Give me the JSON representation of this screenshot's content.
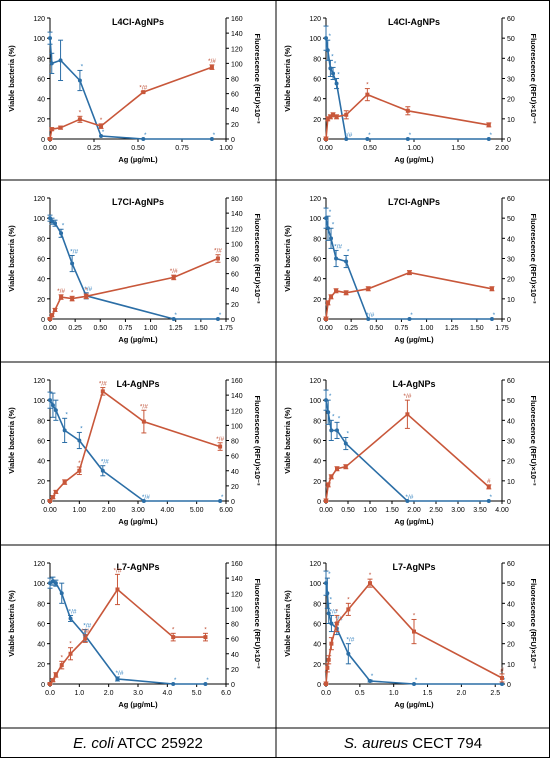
{
  "colors": {
    "viable": "#2b6ea6",
    "fluor": "#c8573a",
    "viable_mark": "#3a86c2",
    "fluor_mark": "#c0533a",
    "grid": "#000000"
  },
  "footer": {
    "left": {
      "italic": "E. coli",
      "rest": " ATCC 25922"
    },
    "right": {
      "italic": "S. aureus",
      "rest": " CECT 794"
    }
  },
  "chart_data": [
    {
      "type": "line",
      "title": "L4Cl-AgNPs",
      "xlabel": "Ag (µg/mL)",
      "ylabel": "Viable bacteria (%)",
      "y2label": "Fluorescence (RFU)×10⁻³",
      "xlim": [
        0,
        1.0
      ],
      "xticks": [
        "0.00",
        "0.25",
        "0.50",
        "0.75",
        "1.00"
      ],
      "ylim": [
        0,
        120
      ],
      "yticks": [
        0,
        20,
        40,
        60,
        80,
        100,
        120
      ],
      "y2lim": [
        0,
        160
      ],
      "y2ticks": [
        0,
        20,
        40,
        60,
        80,
        100,
        120,
        140,
        160
      ],
      "series": [
        {
          "axis": "left",
          "x": [
            0,
            0.01,
            0.06,
            0.17,
            0.29,
            0.53,
            0.92
          ],
          "values": [
            100,
            75,
            78,
            58,
            3,
            0,
            0
          ],
          "err": [
            6,
            10,
            20,
            10,
            0,
            0,
            0
          ],
          "marks": [
            "",
            "",
            "",
            "*",
            "*",
            "*",
            "*"
          ]
        },
        {
          "axis": "right",
          "x": [
            0,
            0.01,
            0.06,
            0.17,
            0.29,
            0.53,
            0.92
          ],
          "values": [
            0,
            13,
            15,
            26,
            17,
            62,
            95
          ],
          "err": [
            2,
            2,
            2,
            4,
            3,
            1,
            3
          ],
          "marks": [
            "",
            "",
            "",
            "*",
            "*",
            "*/#",
            "*/#"
          ]
        }
      ]
    },
    {
      "type": "line",
      "title": "L4Cl-AgNPs",
      "xlabel": "Ag (µg/mL)",
      "ylabel": "Viable bacteria (%)",
      "y2label": "Fluorescence (RFU)×10⁻³",
      "xlim": [
        0,
        2.0
      ],
      "xticks": [
        "0.00",
        "0.50",
        "1.00",
        "1.50",
        "2.00"
      ],
      "ylim": [
        0,
        120
      ],
      "yticks": [
        0,
        20,
        40,
        60,
        80,
        100,
        120
      ],
      "y2lim": [
        0,
        60
      ],
      "y2ticks": [
        0,
        10,
        20,
        30,
        40,
        50,
        60
      ],
      "series": [
        {
          "axis": "left",
          "x": [
            0,
            0.02,
            0.05,
            0.08,
            0.12,
            0.23,
            0.47,
            0.93,
            1.85
          ],
          "values": [
            100,
            88,
            70,
            65,
            55,
            0,
            0,
            0,
            0
          ],
          "err": [
            12,
            10,
            8,
            6,
            5,
            0,
            0,
            0,
            0
          ],
          "marks": [
            "",
            "*",
            "*",
            "*",
            "*",
            "*/#",
            "*",
            "*",
            "*"
          ]
        },
        {
          "axis": "right",
          "x": [
            0,
            0.02,
            0.05,
            0.08,
            0.12,
            0.23,
            0.47,
            0.93,
            1.85
          ],
          "values": [
            0,
            10,
            11,
            12,
            11,
            12,
            22,
            14,
            7
          ],
          "err": [
            1,
            1,
            1,
            1,
            1,
            2,
            3,
            2,
            1
          ],
          "marks": [
            "",
            "",
            "",
            "",
            "",
            "",
            "*",
            "",
            ""
          ]
        }
      ]
    },
    {
      "type": "line",
      "title": "L7Cl-AgNPs",
      "xlabel": "Ag (µg/mL)",
      "ylabel": "Viable bacteria (%)",
      "y2label": "Fluorescence (RFU)×10⁻³",
      "xlim": [
        0,
        1.75
      ],
      "xticks": [
        "0.00",
        "0.25",
        "0.50",
        "0.75",
        "1.00",
        "1.25",
        "1.50",
        "1.75"
      ],
      "ylim": [
        0,
        120
      ],
      "yticks": [
        0,
        20,
        40,
        60,
        80,
        100,
        120
      ],
      "y2lim": [
        0,
        160
      ],
      "y2ticks": [
        0,
        20,
        40,
        60,
        80,
        100,
        120,
        140,
        160
      ],
      "series": [
        {
          "axis": "left",
          "x": [
            0,
            0.02,
            0.05,
            0.11,
            0.22,
            0.36,
            1.23,
            1.67
          ],
          "values": [
            100,
            97,
            95,
            85,
            55,
            23,
            0,
            0
          ],
          "err": [
            3,
            3,
            3,
            4,
            8,
            3,
            0,
            0
          ],
          "marks": [
            "",
            "",
            "",
            "*",
            "*/#",
            "*/#",
            "*",
            "*"
          ]
        },
        {
          "axis": "right",
          "x": [
            0,
            0.02,
            0.05,
            0.11,
            0.22,
            0.36,
            1.23,
            1.67
          ],
          "values": [
            0,
            5,
            12,
            29,
            27,
            30,
            55,
            80
          ],
          "err": [
            2,
            2,
            2,
            3,
            3,
            3,
            3,
            5
          ],
          "marks": [
            "",
            "",
            "",
            "*/#",
            "*",
            "*",
            "*/#",
            "*/#"
          ]
        }
      ]
    },
    {
      "type": "line",
      "title": "L7Cl-AgNPs",
      "xlabel": "Ag (µg/mL)",
      "ylabel": "Viable bacteria (%)",
      "y2label": "Fluorescence (RFU)×10⁻³",
      "xlim": [
        0,
        1.75
      ],
      "xticks": [
        "0.00",
        "0.25",
        "0.50",
        "0.75",
        "1.00",
        "1.25",
        "1.50",
        "1.75"
      ],
      "ylim": [
        0,
        120
      ],
      "yticks": [
        0,
        20,
        40,
        60,
        80,
        100,
        120
      ],
      "y2lim": [
        0,
        60
      ],
      "y2ticks": [
        0,
        10,
        20,
        30,
        40,
        50,
        60
      ],
      "series": [
        {
          "axis": "left",
          "x": [
            0,
            0.02,
            0.05,
            0.1,
            0.2,
            0.42,
            0.83,
            1.65
          ],
          "values": [
            100,
            90,
            80,
            60,
            57,
            0,
            0,
            0
          ],
          "err": [
            10,
            12,
            10,
            8,
            6,
            0,
            0,
            0
          ],
          "marks": [
            "",
            "*",
            "*",
            "*/#",
            "*",
            "*/#",
            "*",
            "*"
          ]
        },
        {
          "axis": "right",
          "x": [
            0,
            0.02,
            0.05,
            0.1,
            0.2,
            0.42,
            0.83,
            1.65
          ],
          "values": [
            0,
            8,
            11,
            14,
            13,
            15,
            23,
            15
          ],
          "err": [
            1,
            1,
            1,
            1,
            1,
            1,
            1,
            1
          ],
          "marks": [
            "",
            "",
            "",
            "",
            "",
            "",
            "",
            ""
          ]
        }
      ]
    },
    {
      "type": "line",
      "title": "L4-AgNPs",
      "xlabel": "Ag (µg/mL)",
      "ylabel": "Viable bacteria (%)",
      "y2label": "Fluorescence (RFU)×10⁻³",
      "xlim": [
        0,
        6.0
      ],
      "xticks": [
        "0.00",
        "1.00",
        "2.00",
        "3.00",
        "4.00",
        "5.00",
        "6.00"
      ],
      "ylim": [
        0,
        120
      ],
      "yticks": [
        0,
        20,
        40,
        60,
        80,
        100,
        120
      ],
      "y2lim": [
        0,
        160
      ],
      "y2ticks": [
        0,
        20,
        40,
        60,
        80,
        100,
        120,
        140,
        160
      ],
      "series": [
        {
          "axis": "left",
          "x": [
            0,
            0.1,
            0.2,
            0.5,
            1.0,
            1.8,
            3.2,
            5.8
          ],
          "values": [
            100,
            95,
            90,
            70,
            60,
            30,
            0,
            0
          ],
          "err": [
            8,
            12,
            10,
            12,
            8,
            5,
            0,
            0
          ],
          "marks": [
            "",
            "",
            "",
            "*",
            "*",
            "*/#",
            "*/#",
            "*"
          ]
        },
        {
          "axis": "right",
          "x": [
            0,
            0.1,
            0.2,
            0.5,
            1.0,
            1.8,
            3.2,
            5.8
          ],
          "values": [
            0,
            5,
            12,
            25,
            40,
            145,
            105,
            72
          ],
          "err": [
            2,
            2,
            2,
            3,
            5,
            5,
            15,
            5
          ],
          "marks": [
            "",
            "",
            "",
            "",
            "*",
            "*/#",
            "*/#",
            "*/#"
          ]
        }
      ]
    },
    {
      "type": "line",
      "title": "L4-AgNPs",
      "xlabel": "Ag (µg/mL)",
      "ylabel": "Viable bacteria (%)",
      "y2label": "Fluorescence (RFU)×10⁻³",
      "xlim": [
        0,
        4.0
      ],
      "xticks": [
        "0.00",
        "0.50",
        "1.00",
        "1.50",
        "2.00",
        "2.50",
        "3.00",
        "3.50",
        "4.00"
      ],
      "ylim": [
        0,
        120
      ],
      "yticks": [
        0,
        20,
        40,
        60,
        80,
        100,
        120
      ],
      "y2lim": [
        0,
        60
      ],
      "y2ticks": [
        0,
        10,
        20,
        30,
        40,
        50,
        60
      ],
      "series": [
        {
          "axis": "left",
          "x": [
            0,
            0.05,
            0.12,
            0.25,
            0.45,
            1.85,
            3.7
          ],
          "values": [
            100,
            88,
            70,
            70,
            57,
            0,
            0
          ],
          "err": [
            10,
            12,
            10,
            8,
            6,
            0,
            0
          ],
          "marks": [
            "",
            "*",
            "*",
            "*",
            "*",
            "*/#",
            "*"
          ]
        },
        {
          "axis": "right",
          "x": [
            0,
            0.05,
            0.12,
            0.25,
            0.45,
            1.85,
            3.7
          ],
          "values": [
            0,
            8,
            12,
            16,
            17,
            43,
            7
          ],
          "err": [
            1,
            1,
            1,
            1,
            1,
            7,
            1
          ],
          "marks": [
            "",
            "",
            "",
            "",
            "",
            "*/#",
            "#"
          ]
        }
      ]
    },
    {
      "type": "line",
      "title": "L7-AgNPs",
      "xlabel": "Ag (µg/mL)",
      "ylabel": "Viable bacteria (%)",
      "y2label": "Fluorescence (RFU)×10⁻³",
      "xlim": [
        0,
        6.0
      ],
      "xticks": [
        "0.0",
        "1.0",
        "2.0",
        "3.0",
        "4.0",
        "5.0",
        "6.0"
      ],
      "ylim": [
        0,
        120
      ],
      "yticks": [
        0,
        20,
        40,
        60,
        80,
        100,
        120
      ],
      "y2lim": [
        0,
        160
      ],
      "y2ticks": [
        0,
        20,
        40,
        60,
        80,
        100,
        120,
        140,
        160
      ],
      "series": [
        {
          "axis": "left",
          "x": [
            0,
            0.1,
            0.2,
            0.4,
            0.7,
            1.2,
            2.3,
            4.2,
            5.3
          ],
          "values": [
            100,
            102,
            100,
            90,
            65,
            48,
            5,
            0,
            0
          ],
          "err": [
            5,
            4,
            3,
            10,
            3,
            6,
            2,
            0,
            0
          ],
          "marks": [
            "",
            "",
            "",
            "",
            "*/#",
            "*/#",
            "*/#",
            "*",
            "*"
          ]
        },
        {
          "axis": "right",
          "x": [
            0,
            0.1,
            0.2,
            0.4,
            0.7,
            1.2,
            2.3,
            4.2,
            5.3
          ],
          "values": [
            0,
            5,
            12,
            25,
            40,
            60,
            125,
            62,
            62
          ],
          "err": [
            2,
            2,
            3,
            5,
            8,
            5,
            20,
            5,
            5
          ],
          "marks": [
            "",
            "",
            "",
            "*",
            "*",
            "*/#",
            "*/#",
            "*",
            "*"
          ]
        }
      ]
    },
    {
      "type": "line",
      "title": "L7-AgNPs",
      "xlabel": "Ag (µg/mL)",
      "ylabel": "Viable bacteria (%)",
      "y2label": "Fluorescence (RFU)×10⁻³",
      "xlim": [
        0,
        2.6
      ],
      "xticks": [
        "0.0",
        "0.5",
        "1.0",
        "1.5",
        "2.0",
        "2.5"
      ],
      "ylim": [
        0,
        120
      ],
      "yticks": [
        0,
        20,
        40,
        60,
        80,
        100,
        120
      ],
      "y2lim": [
        0,
        60
      ],
      "y2ticks": [
        0,
        10,
        20,
        30,
        40,
        50,
        60
      ],
      "series": [
        {
          "axis": "left",
          "x": [
            0,
            0.02,
            0.04,
            0.08,
            0.16,
            0.33,
            0.65,
            1.3,
            2.6
          ],
          "values": [
            100,
            90,
            70,
            60,
            55,
            30,
            3,
            0,
            0
          ],
          "err": [
            12,
            15,
            10,
            8,
            6,
            10,
            1,
            0,
            0
          ],
          "marks": [
            "",
            "*",
            "*",
            "*/#",
            "*/#",
            "*/#",
            "*",
            "*",
            "*"
          ]
        },
        {
          "axis": "right",
          "x": [
            0,
            0.02,
            0.04,
            0.08,
            0.16,
            0.33,
            0.65,
            1.3,
            2.6
          ],
          "values": [
            0,
            8,
            12,
            20,
            30,
            37,
            50,
            26,
            3
          ],
          "err": [
            1,
            2,
            2,
            3,
            4,
            3,
            2,
            6,
            2
          ],
          "marks": [
            "",
            "",
            "",
            "",
            "*",
            "*",
            "*",
            "*",
            "#"
          ]
        }
      ]
    }
  ]
}
